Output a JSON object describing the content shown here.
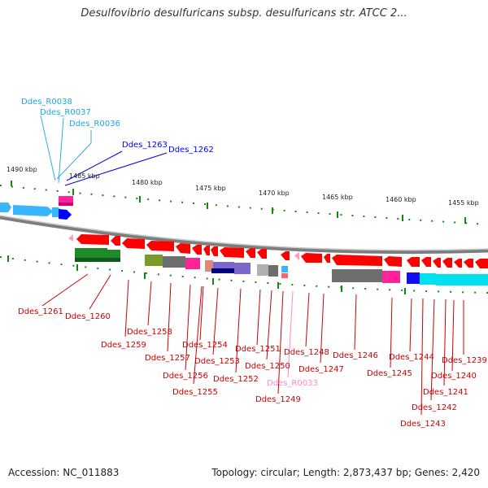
{
  "title": "Desulfovibrio desulfuricans subsp. desulfuricans str. ATCC 2...",
  "accession": "Accession: NC_011883",
  "topology": "Topology: circular; Length: 2,873,437 bp; Genes: 2,420",
  "scale_labels": [
    "1490 kbp",
    "1485 kbp",
    "1480 kbp",
    "1475 kbp",
    "1470 kbp",
    "1465 kbp",
    "1460 kbp",
    "1455 kbp"
  ],
  "colors": {
    "forward_gene": "#4aa8ff",
    "reverse_gene": "#ff1a1a",
    "rna_label": "#1aa6e6",
    "pseudo_label": "#ff88cc",
    "forward_label": "#0000ff",
    "reverse_label": "#cc0000",
    "backbone": "#888888",
    "tick": "#118811"
  },
  "top_labels": [
    {
      "text": "Ddes_R0038",
      "kind": "rna"
    },
    {
      "text": "Ddes_R0037",
      "kind": "rna"
    },
    {
      "text": "Ddes_R0036",
      "kind": "rna"
    },
    {
      "text": "Ddes_1263",
      "kind": "forward"
    },
    {
      "text": "Ddes_1262",
      "kind": "forward"
    }
  ],
  "bottom_labels": [
    {
      "text": "Ddes_1261",
      "kind": "reverse"
    },
    {
      "text": "Ddes_1260",
      "kind": "reverse"
    },
    {
      "text": "Ddes_1259",
      "kind": "reverse"
    },
    {
      "text": "Ddes_1258",
      "kind": "reverse"
    },
    {
      "text": "Ddes_1257",
      "kind": "reverse"
    },
    {
      "text": "Ddes_1256",
      "kind": "reverse"
    },
    {
      "text": "Ddes_1255",
      "kind": "reverse"
    },
    {
      "text": "Ddes_1254",
      "kind": "reverse"
    },
    {
      "text": "Ddes_1253",
      "kind": "reverse"
    },
    {
      "text": "Ddes_1252",
      "kind": "reverse"
    },
    {
      "text": "Ddes_1251",
      "kind": "reverse"
    },
    {
      "text": "Ddes_1250",
      "kind": "reverse"
    },
    {
      "text": "Ddes_R0033",
      "kind": "pseudo"
    },
    {
      "text": "Ddes_1249",
      "kind": "reverse"
    },
    {
      "text": "Ddes_1248",
      "kind": "reverse"
    },
    {
      "text": "Ddes_1247",
      "kind": "reverse"
    },
    {
      "text": "Ddes_1246",
      "kind": "reverse"
    },
    {
      "text": "Ddes_1245",
      "kind": "reverse"
    },
    {
      "text": "Ddes_1244",
      "kind": "reverse"
    },
    {
      "text": "Ddes_1243",
      "kind": "reverse"
    },
    {
      "text": "Ddes_1242",
      "kind": "reverse"
    },
    {
      "text": "Ddes_1241",
      "kind": "reverse"
    },
    {
      "text": "Ddes_1240",
      "kind": "reverse"
    },
    {
      "text": "Ddes_1239",
      "kind": "reverse"
    }
  ]
}
